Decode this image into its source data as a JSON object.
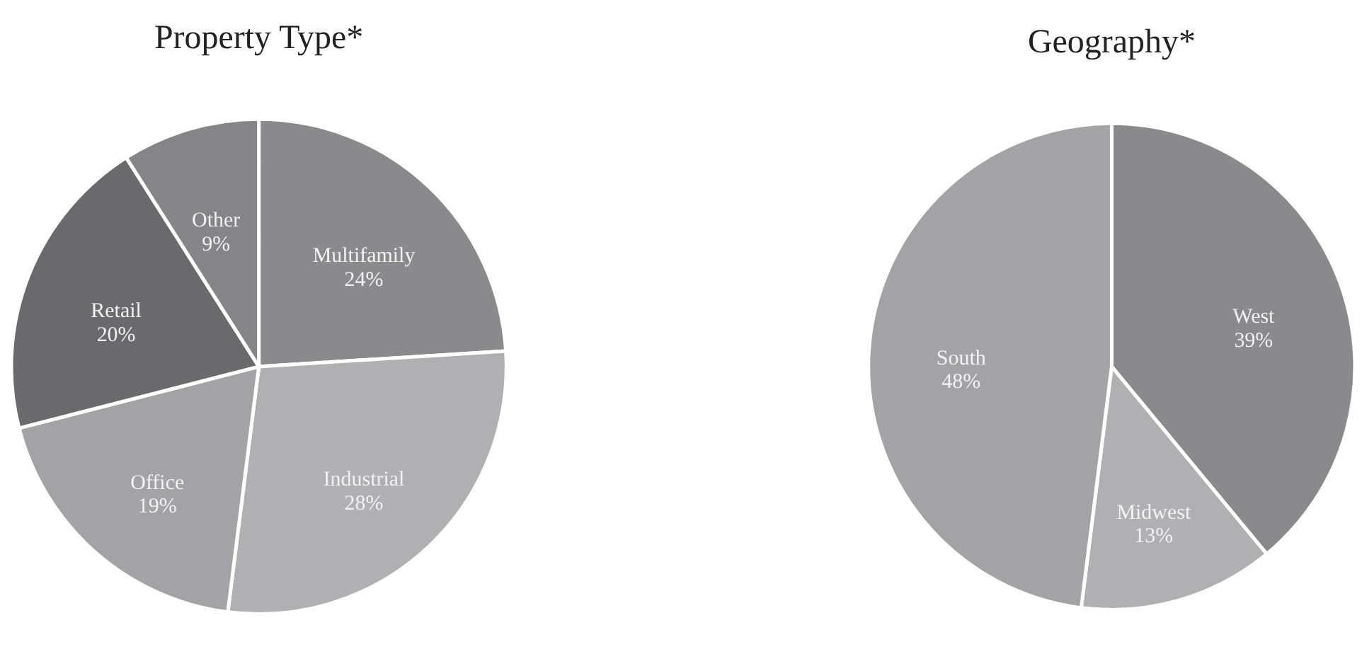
{
  "chart_data": [
    {
      "type": "pie",
      "title": "Property Type*",
      "categories": [
        "Multifamily",
        "Industrial",
        "Office",
        "Retail",
        "Other"
      ],
      "values": [
        24,
        28,
        19,
        20,
        9
      ],
      "value_labels": [
        "24%",
        "28%",
        "19%",
        "20%",
        "9%"
      ],
      "colors": [
        "#8a8a8c",
        "#b0b0b2",
        "#a3a3a5",
        "#6a6a6c",
        "#858587"
      ]
    },
    {
      "type": "pie",
      "title": "Geography*",
      "categories": [
        "West",
        "Midwest",
        "South"
      ],
      "values": [
        39,
        13,
        48
      ],
      "value_labels": [
        "39%",
        "13%",
        "48%"
      ],
      "colors": [
        "#8a8a8c",
        "#b4b4b6",
        "#a8a8aa"
      ]
    }
  ]
}
